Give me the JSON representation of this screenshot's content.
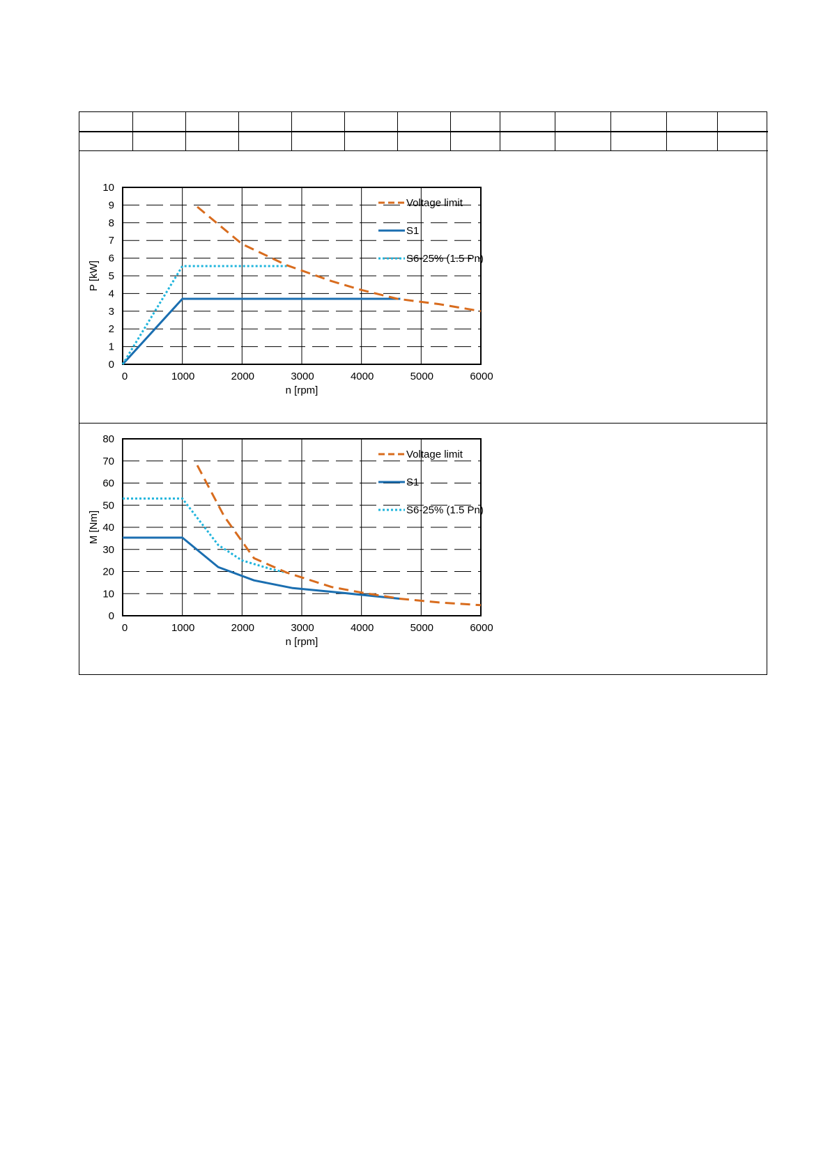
{
  "header_table": {
    "rows": [
      [
        "",
        "",
        "",
        "",
        "",
        "",
        "",
        "",
        "",
        "",
        "",
        "",
        ""
      ],
      [
        "",
        "",
        "",
        "",
        "",
        "",
        "",
        "",
        "",
        "",
        "",
        "",
        ""
      ]
    ]
  },
  "colors": {
    "voltage_limit": "#d86c1e",
    "s1": "#1a6eb0",
    "s6": "#1fb4dc"
  },
  "chart_data": [
    {
      "type": "line",
      "xlabel": "n [rpm]",
      "ylabel": "P [kW]",
      "xlim": [
        0,
        6000
      ],
      "ylim": [
        0,
        10
      ],
      "xticks": [
        0,
        1000,
        2000,
        3000,
        4000,
        5000,
        6000
      ],
      "yticks": [
        0,
        1,
        2,
        3,
        4,
        5,
        6,
        7,
        8,
        9,
        10
      ],
      "grid": true,
      "legend_position": "top-right",
      "series": [
        {
          "name": "Voltage limit",
          "style": "dashed",
          "color": "#d86c1e",
          "x": [
            1250,
            2000,
            2750,
            3500,
            4000,
            4600,
            5300,
            6000
          ],
          "y": [
            8.9,
            6.8,
            5.6,
            4.7,
            4.2,
            3.7,
            3.4,
            3.0
          ]
        },
        {
          "name": "S1",
          "style": "solid",
          "color": "#1a6eb0",
          "x": [
            0,
            1000,
            4650
          ],
          "y": [
            0,
            3.7,
            3.7
          ]
        },
        {
          "name": "S6-25% (1.5 Pn)",
          "style": "dotted",
          "color": "#1fb4dc",
          "x": [
            0,
            1000,
            2750
          ],
          "y": [
            0,
            5.55,
            5.55
          ]
        }
      ]
    },
    {
      "type": "line",
      "xlabel": "n [rpm]",
      "ylabel": "M [Nm]",
      "xlim": [
        0,
        6000
      ],
      "ylim": [
        0,
        80
      ],
      "xticks": [
        0,
        1000,
        2000,
        3000,
        4000,
        5000,
        6000
      ],
      "yticks": [
        0,
        10,
        20,
        30,
        40,
        50,
        60,
        70,
        80
      ],
      "grid": true,
      "legend_position": "top-right",
      "series": [
        {
          "name": "Voltage limit",
          "style": "dashed",
          "color": "#d86c1e",
          "x": [
            1250,
            1700,
            2200,
            2750,
            3500,
            4000,
            4650,
            5300,
            6000
          ],
          "y": [
            68,
            45,
            26,
            19.5,
            13,
            10.5,
            7.7,
            6,
            4.8
          ]
        },
        {
          "name": "S1",
          "style": "solid",
          "color": "#1a6eb0",
          "x": [
            0,
            1000,
            1600,
            2200,
            2850,
            3700,
            4650
          ],
          "y": [
            35.3,
            35.3,
            22,
            16,
            12.5,
            10.3,
            7.7
          ]
        },
        {
          "name": "S6-25% (1.5 Pn)",
          "style": "dotted",
          "color": "#1fb4dc",
          "x": [
            0,
            1000,
            1600,
            2000,
            2500,
            2750
          ],
          "y": [
            53,
            53,
            32,
            25,
            21,
            19.5
          ]
        }
      ]
    }
  ]
}
